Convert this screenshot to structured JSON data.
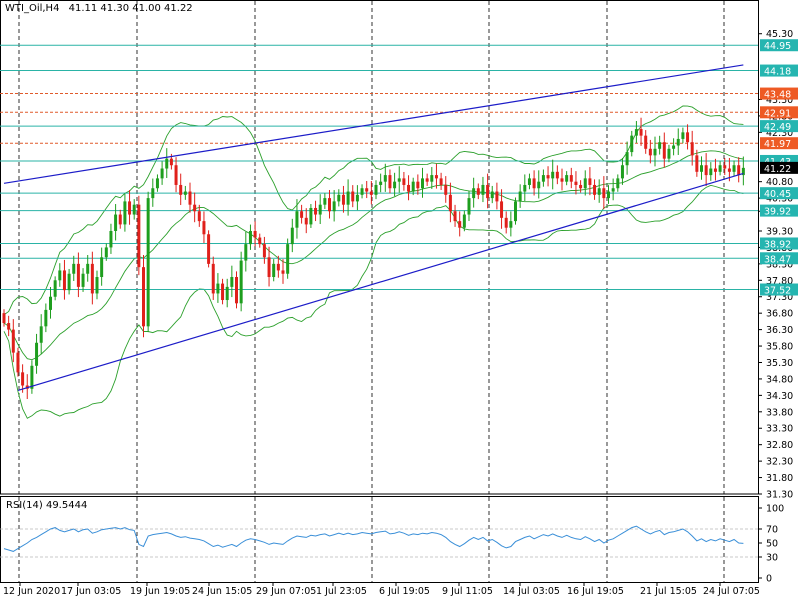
{
  "header": {
    "symbol": "WTI_Oil,H4",
    "ohlc": "41.11 41.30 41.00 41.22"
  },
  "rsi_header": {
    "label": "RSI(14) 49.5444"
  },
  "colors": {
    "background": "#ffffff",
    "bull_candle": "#1e9e1e",
    "bear_candle": "#e0201b",
    "bollinger": "#2ca02c",
    "trendline": "#1c1cc8",
    "support_resistance": "#2ab3a6",
    "dashed_levels": "#e05a2b",
    "rsi_line": "#3a8fd8",
    "price_tag_teal": "#25b5b0",
    "price_tag_orange": "#ee5a24",
    "price_tag_current": "#000000"
  },
  "chart_data": [
    {
      "type": "candlestick",
      "title": "WTI_Oil,H4",
      "ylim": [
        31.3,
        45.9
      ],
      "y_ticks": [
        45.3,
        44.95,
        44.18,
        43.3,
        42.8,
        42.3,
        41.22,
        40.8,
        40.3,
        39.9,
        39.3,
        38.8,
        38.3,
        37.8,
        37.3,
        36.8,
        36.3,
        35.8,
        35.3,
        34.8,
        34.3,
        33.8,
        33.3,
        32.8,
        32.3,
        31.8,
        31.3
      ],
      "y_tick_labels": [
        "45.30",
        "44.95",
        "44.18",
        "43.30",
        "42.80",
        "42.30",
        "41.22",
        "40.80",
        "40.30",
        "39.90",
        "39.30",
        "38.80",
        "38.30",
        "37.80",
        "37.30",
        "36.80",
        "36.30",
        "35.80",
        "35.30",
        "34.80",
        "34.30",
        "33.80",
        "33.30",
        "32.80",
        "32.30",
        "31.80",
        "31.30"
      ],
      "x_tick_labels": [
        "12 Jun 2020",
        "17 Jun 03:05",
        "19 Jun 19:05",
        "24 Jun 15:05",
        "29 Jun 07:05",
        "1 Jul 23:05",
        "6 Jul 19:05",
        "9 Jul 11:05",
        "14 Jul 03:05",
        "16 Jul 19:05",
        "21 Jul 15:05",
        "24 Jul 07:05"
      ],
      "horizontal_levels_solid": [
        44.95,
        44.18,
        42.49,
        41.43,
        40.45,
        39.92,
        38.92,
        38.47,
        37.52
      ],
      "horizontal_levels_dashed": [
        43.48,
        42.91,
        41.97
      ],
      "price_tags": [
        {
          "value": 44.95,
          "label": "44.95",
          "style": "teal"
        },
        {
          "value": 44.18,
          "label": "44.18",
          "style": "teal"
        },
        {
          "value": 43.48,
          "label": "43.48",
          "style": "orange"
        },
        {
          "value": 42.91,
          "label": "42.91",
          "style": "orange"
        },
        {
          "value": 42.49,
          "label": "42.49",
          "style": "teal"
        },
        {
          "value": 41.97,
          "label": "41.97",
          "style": "orange"
        },
        {
          "value": 41.43,
          "label": "41.43",
          "style": "teal"
        },
        {
          "value": 41.22,
          "label": "41.22",
          "style": "current"
        },
        {
          "value": 40.45,
          "label": "40.45",
          "style": "teal"
        },
        {
          "value": 39.92,
          "label": "39.92",
          "style": "teal"
        },
        {
          "value": 38.92,
          "label": "38.92",
          "style": "teal"
        },
        {
          "value": 38.47,
          "label": "38.47",
          "style": "teal"
        },
        {
          "value": 37.52,
          "label": "37.52",
          "style": "teal"
        }
      ],
      "trendlines": [
        {
          "name": "upper-channel",
          "from_bar": 0,
          "from_price": 40.75,
          "to_bar": 159,
          "to_price": 44.35
        },
        {
          "name": "lower-channel",
          "from_bar": 3,
          "from_price": 34.45,
          "to_bar": 159,
          "to_price": 41.05
        }
      ],
      "closes": [
        36.5,
        36.3,
        35.6,
        35.0,
        34.6,
        34.5,
        35.2,
        35.9,
        36.4,
        36.9,
        37.3,
        37.8,
        38.1,
        37.5,
        38.0,
        38.3,
        37.6,
        38.0,
        38.3,
        37.4,
        37.9,
        38.5,
        38.8,
        39.3,
        39.8,
        39.5,
        40.2,
        39.8,
        40.1,
        38.2,
        36.4,
        40.3,
        40.6,
        40.9,
        41.2,
        41.5,
        41.3,
        40.7,
        40.4,
        40.5,
        40.1,
        39.9,
        39.6,
        39.2,
        38.3,
        37.4,
        37.7,
        37.2,
        37.6,
        37.9,
        37.1,
        38.4,
        38.9,
        39.3,
        39.1,
        38.9,
        38.5,
        37.9,
        38.3,
        38.1,
        38.0,
        38.9,
        39.4,
        39.9,
        39.7,
        39.5,
        40.0,
        39.8,
        40.1,
        40.3,
        39.9,
        40.2,
        40.4,
        40.1,
        40.5,
        40.2,
        40.4,
        40.6,
        40.5,
        40.4,
        40.7,
        40.8,
        41.0,
        40.6,
        40.8,
        40.9,
        40.7,
        40.5,
        40.8,
        40.6,
        40.9,
        40.8,
        41.0,
        40.9,
        40.7,
        40.4,
        39.9,
        39.6,
        39.4,
        39.8,
        40.3,
        40.6,
        40.4,
        40.7,
        40.3,
        40.5,
        40.2,
        39.7,
        39.4,
        39.6,
        40.2,
        40.5,
        40.7,
        40.9,
        40.6,
        40.8,
        41.0,
        40.9,
        41.1,
        40.9,
        40.8,
        41.0,
        40.8,
        40.7,
        40.6,
        40.9,
        40.7,
        40.4,
        40.6,
        40.3,
        40.5,
        40.6,
        40.9,
        41.3,
        41.7,
        42.2,
        42.4,
        42.2,
        41.8,
        41.6,
        41.8,
        42.0,
        41.5,
        41.8,
        41.9,
        42.1,
        42.3,
        42.0,
        41.6,
        41.1,
        41.3,
        41.0,
        41.2,
        41.1,
        41.3,
        41.2,
        41.1,
        41.3,
        41.0,
        41.22
      ]
    },
    {
      "type": "line",
      "title": "RSI(14) 49.5444",
      "ylim": [
        0,
        100
      ],
      "y_ticks": [
        100,
        70,
        50,
        30,
        0
      ],
      "y_tick_labels": [
        "100",
        "70",
        "50",
        "30",
        "0"
      ],
      "levels": [
        70,
        30
      ],
      "values": [
        42,
        40,
        38,
        42,
        46,
        50,
        55,
        58,
        62,
        66,
        70,
        72,
        68,
        66,
        68,
        70,
        66,
        69,
        70,
        64,
        66,
        69,
        70,
        71,
        72,
        70,
        72,
        69,
        68,
        48,
        45,
        60,
        62,
        63,
        64,
        65,
        63,
        60,
        58,
        59,
        57,
        56,
        55,
        53,
        49,
        45,
        47,
        44,
        46,
        48,
        45,
        50,
        54,
        56,
        55,
        53,
        51,
        48,
        50,
        49,
        48,
        53,
        57,
        60,
        59,
        58,
        61,
        60,
        62,
        63,
        60,
        62,
        64,
        62,
        64,
        62,
        63,
        65,
        64,
        63,
        65,
        66,
        67,
        63,
        64,
        66,
        64,
        61,
        63,
        62,
        64,
        63,
        65,
        64,
        62,
        58,
        52,
        48,
        45,
        49,
        54,
        58,
        55,
        58,
        53,
        55,
        51,
        46,
        43,
        45,
        52,
        55,
        58,
        60,
        56,
        59,
        62,
        60,
        63,
        60,
        58,
        61,
        58,
        56,
        55,
        59,
        56,
        52,
        55,
        50,
        54,
        56,
        60,
        64,
        68,
        72,
        74,
        70,
        66,
        63,
        66,
        68,
        62,
        65,
        66,
        68,
        70,
        66,
        60,
        53,
        56,
        52,
        55,
        53,
        56,
        54,
        52,
        55,
        50,
        49.5
      ]
    }
  ]
}
